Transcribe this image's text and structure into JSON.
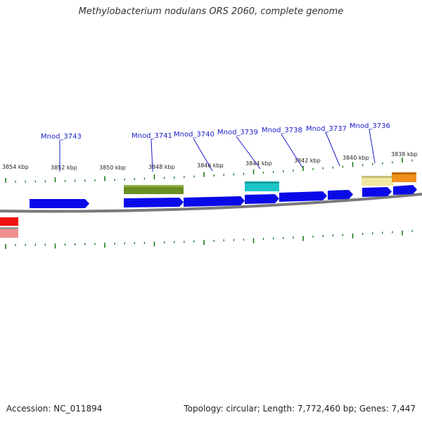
{
  "title": "Methylobacterium nodulans ORS 2060, complete genome",
  "footer": {
    "accession": "Accession: NC_011894",
    "summary": "Topology: circular; Length: 7,772,460 bp; Genes: 7,447"
  },
  "kbp_labels": [
    "3854 kbp",
    "3852 kbp",
    "3850 kbp",
    "3848 kbp",
    "3846 kbp",
    "3844 kbp",
    "3842 kbp",
    "3840 kbp",
    "3838 kbp"
  ],
  "gene_labels": [
    "Mnod_3743",
    "Mnod_3741",
    "Mnod_3740",
    "Mnod_3739",
    "Mnod_3738",
    "Mnod_3737",
    "Mnod_3736"
  ],
  "colors": {
    "cds": "#0a0ae8",
    "olive": "#6b8e23",
    "cyan": "#1fc4c8",
    "khaki": "#eee8a0",
    "orange": "#f0901a",
    "red": "#ee1111",
    "pink": "#f09090",
    "tick": "#1a7a1a",
    "backbone": "#7a7a7a"
  }
}
